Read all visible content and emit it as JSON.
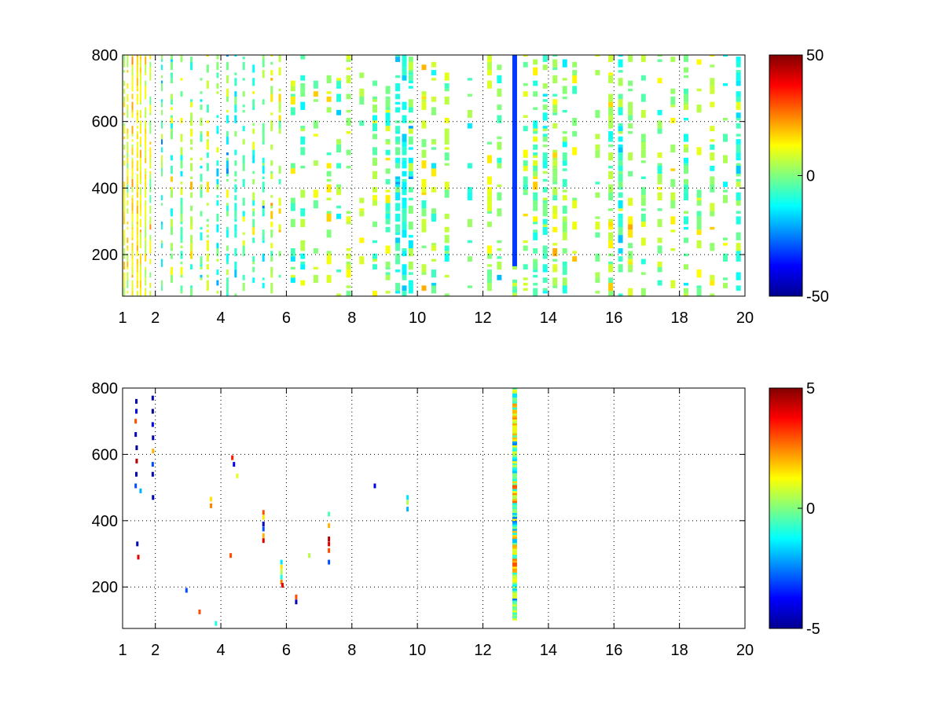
{
  "chart_data": [
    {
      "type": "heatmap",
      "panel": "top",
      "title": "",
      "xlabel": "",
      "ylabel": "",
      "xlim": [
        1,
        20
      ],
      "ylim": [
        75,
        800
      ],
      "xticks": [
        1,
        2,
        4,
        6,
        8,
        10,
        12,
        14,
        16,
        18,
        20
      ],
      "yticks": [
        200,
        400,
        600,
        800
      ],
      "grid": true,
      "colormap": "jet",
      "clim": [
        -50,
        50
      ],
      "colorbar_ticks": [
        50,
        0,
        -50
      ],
      "columns": [
        {
          "x": 1.05,
          "density": 0.45,
          "mean": 8,
          "spread": 8
        },
        {
          "x": 1.15,
          "density": 0.55,
          "mean": 10,
          "spread": 8
        },
        {
          "x": 1.3,
          "density": 0.75,
          "mean": 12,
          "spread": 6
        },
        {
          "x": 1.45,
          "density": 0.8,
          "mean": 14,
          "spread": 5
        },
        {
          "x": 1.55,
          "density": 0.85,
          "mean": 13,
          "spread": 5
        },
        {
          "x": 1.7,
          "density": 0.75,
          "mean": 11,
          "spread": 6
        },
        {
          "x": 1.85,
          "density": 0.55,
          "mean": 8,
          "spread": 8
        },
        {
          "x": 2.2,
          "density": 0.35,
          "mean": -6,
          "spread": 10
        },
        {
          "x": 2.5,
          "density": 0.4,
          "mean": 2,
          "spread": 10
        },
        {
          "x": 2.8,
          "density": 0.35,
          "mean": 0,
          "spread": 10
        },
        {
          "x": 3.1,
          "density": 0.38,
          "mean": 4,
          "spread": 10
        },
        {
          "x": 3.4,
          "density": 0.32,
          "mean": -4,
          "spread": 10
        },
        {
          "x": 3.6,
          "density": 0.35,
          "mean": 5,
          "spread": 10
        },
        {
          "x": 3.9,
          "density": 0.3,
          "mean": -5,
          "spread": 10
        },
        {
          "x": 4.2,
          "density": 0.32,
          "mean": -3,
          "spread": 10
        },
        {
          "x": 4.45,
          "density": 0.38,
          "mean": -8,
          "spread": 9
        },
        {
          "x": 4.7,
          "density": 0.3,
          "mean": 2,
          "spread": 10
        },
        {
          "x": 5.0,
          "density": 0.28,
          "mean": -4,
          "spread": 10
        },
        {
          "x": 5.3,
          "density": 0.3,
          "mean": -7,
          "spread": 10
        },
        {
          "x": 5.55,
          "density": 0.3,
          "mean": 6,
          "spread": 9
        },
        {
          "x": 5.8,
          "density": 0.25,
          "mean": 4,
          "spread": 10
        },
        {
          "x": 6.2,
          "density": 0.22,
          "mean": 2,
          "spread": 10
        },
        {
          "x": 6.5,
          "density": 0.22,
          "mean": -3,
          "spread": 10
        },
        {
          "x": 6.9,
          "density": 0.22,
          "mean": 6,
          "spread": 8
        },
        {
          "x": 7.3,
          "density": 0.25,
          "mean": 8,
          "spread": 8
        },
        {
          "x": 7.6,
          "density": 0.2,
          "mean": -2,
          "spread": 10
        },
        {
          "x": 7.9,
          "density": 0.28,
          "mean": 5,
          "spread": 8
        },
        {
          "x": 8.3,
          "density": 0.2,
          "mean": 4,
          "spread": 8
        },
        {
          "x": 8.7,
          "density": 0.25,
          "mean": 0,
          "spread": 10
        },
        {
          "x": 9.1,
          "density": 0.3,
          "mean": 2,
          "spread": 10
        },
        {
          "x": 9.4,
          "density": 0.45,
          "mean": -10,
          "spread": 8
        },
        {
          "x": 9.6,
          "density": 0.55,
          "mean": -12,
          "spread": 6
        },
        {
          "x": 9.8,
          "density": 0.4,
          "mean": -4,
          "spread": 10
        },
        {
          "x": 10.2,
          "density": 0.25,
          "mean": 6,
          "spread": 8
        },
        {
          "x": 10.5,
          "density": 0.3,
          "mean": 0,
          "spread": 10
        },
        {
          "x": 10.9,
          "density": 0.25,
          "mean": 4,
          "spread": 8
        },
        {
          "x": 11.6,
          "density": 0.18,
          "mean": 0,
          "spread": 10
        },
        {
          "x": 12.2,
          "density": 0.35,
          "mean": 6,
          "spread": 8
        },
        {
          "x": 12.5,
          "density": 0.25,
          "mean": 2,
          "spread": 10
        },
        {
          "x": 13.3,
          "density": 0.35,
          "mean": 4,
          "spread": 8
        },
        {
          "x": 13.6,
          "density": 0.3,
          "mean": 0,
          "spread": 10
        },
        {
          "x": 13.9,
          "density": 0.45,
          "mean": -6,
          "spread": 8
        },
        {
          "x": 14.2,
          "density": 0.4,
          "mean": 6,
          "spread": 8
        },
        {
          "x": 14.5,
          "density": 0.3,
          "mean": -2,
          "spread": 8
        },
        {
          "x": 14.8,
          "density": 0.25,
          "mean": 4,
          "spread": 8
        },
        {
          "x": 15.5,
          "density": 0.2,
          "mean": 0,
          "spread": 8
        },
        {
          "x": 15.9,
          "density": 0.4,
          "mean": 5,
          "spread": 8
        },
        {
          "x": 16.2,
          "density": 0.55,
          "mean": -8,
          "spread": 8
        },
        {
          "x": 16.5,
          "density": 0.3,
          "mean": 4,
          "spread": 8
        },
        {
          "x": 16.9,
          "density": 0.25,
          "mean": 2,
          "spread": 8
        },
        {
          "x": 17.4,
          "density": 0.3,
          "mean": 0,
          "spread": 8
        },
        {
          "x": 17.8,
          "density": 0.25,
          "mean": 5,
          "spread": 8
        },
        {
          "x": 18.2,
          "density": 0.3,
          "mean": -2,
          "spread": 8
        },
        {
          "x": 18.6,
          "density": 0.2,
          "mean": 3,
          "spread": 8
        },
        {
          "x": 19.0,
          "density": 0.3,
          "mean": 4,
          "spread": 8
        },
        {
          "x": 19.4,
          "density": 0.2,
          "mean": -2,
          "spread": 8
        },
        {
          "x": 19.8,
          "density": 0.45,
          "mean": -4,
          "spread": 8
        }
      ],
      "solid_band": {
        "x": 12.97,
        "ymin": 160,
        "ymax": 800,
        "value": -32
      }
    },
    {
      "type": "heatmap",
      "panel": "bottom",
      "title": "",
      "xlabel": "",
      "ylabel": "",
      "xlim": [
        1,
        20
      ],
      "ylim": [
        75,
        800
      ],
      "xticks": [
        1,
        2,
        4,
        6,
        8,
        10,
        12,
        14,
        16,
        18,
        20
      ],
      "yticks": [
        200,
        400,
        600,
        800
      ],
      "grid": true,
      "colormap": "jet",
      "clim": [
        -5,
        5
      ],
      "colorbar_ticks": [
        5,
        0,
        -5
      ],
      "band": {
        "x": 12.97,
        "ymin": 100,
        "ymax": 800
      },
      "points": [
        {
          "x": 1.42,
          "y": 760,
          "v": -4.5
        },
        {
          "x": 1.42,
          "y": 730,
          "v": -4.0
        },
        {
          "x": 1.4,
          "y": 700,
          "v": 3.0
        },
        {
          "x": 1.4,
          "y": 660,
          "v": -4.5
        },
        {
          "x": 1.43,
          "y": 620,
          "v": -4.8
        },
        {
          "x": 1.43,
          "y": 580,
          "v": 4.5
        },
        {
          "x": 1.42,
          "y": 540,
          "v": -4.5
        },
        {
          "x": 1.4,
          "y": 505,
          "v": -3.0
        },
        {
          "x": 1.45,
          "y": 330,
          "v": -4.5
        },
        {
          "x": 1.48,
          "y": 290,
          "v": 4.0
        },
        {
          "x": 1.55,
          "y": 490,
          "v": -2.0
        },
        {
          "x": 1.92,
          "y": 770,
          "v": -4.5
        },
        {
          "x": 1.92,
          "y": 730,
          "v": -4.8
        },
        {
          "x": 1.92,
          "y": 690,
          "v": -4.0
        },
        {
          "x": 1.93,
          "y": 650,
          "v": -4.5
        },
        {
          "x": 1.93,
          "y": 610,
          "v": 2.0
        },
        {
          "x": 1.92,
          "y": 570,
          "v": -3.0
        },
        {
          "x": 1.92,
          "y": 540,
          "v": -4.5
        },
        {
          "x": 1.93,
          "y": 470,
          "v": -4.5
        },
        {
          "x": 2.95,
          "y": 190,
          "v": -3.0
        },
        {
          "x": 3.35,
          "y": 125,
          "v": 3.0
        },
        {
          "x": 3.7,
          "y": 465,
          "v": 1.5
        },
        {
          "x": 3.7,
          "y": 445,
          "v": 2.5
        },
        {
          "x": 3.85,
          "y": 90,
          "v": -1.0
        },
        {
          "x": 4.35,
          "y": 590,
          "v": 3.5
        },
        {
          "x": 4.4,
          "y": 570,
          "v": -4.0
        },
        {
          "x": 4.5,
          "y": 535,
          "v": 1.0
        },
        {
          "x": 4.3,
          "y": 295,
          "v": 3.0
        },
        {
          "x": 5.3,
          "y": 425,
          "v": 3.0
        },
        {
          "x": 5.3,
          "y": 410,
          "v": 1.5
        },
        {
          "x": 5.3,
          "y": 390,
          "v": -4.5
        },
        {
          "x": 5.3,
          "y": 375,
          "v": -3.0
        },
        {
          "x": 5.3,
          "y": 355,
          "v": 2.0
        },
        {
          "x": 5.3,
          "y": 340,
          "v": 4.0
        },
        {
          "x": 5.85,
          "y": 275,
          "v": -1.5
        },
        {
          "x": 5.85,
          "y": 260,
          "v": 1.5
        },
        {
          "x": 5.85,
          "y": 245,
          "v": 0.5
        },
        {
          "x": 5.85,
          "y": 230,
          "v": -1.0
        },
        {
          "x": 5.85,
          "y": 215,
          "v": 2.5
        },
        {
          "x": 5.88,
          "y": 205,
          "v": 4.0
        },
        {
          "x": 6.3,
          "y": 170,
          "v": 3.0
        },
        {
          "x": 6.3,
          "y": 155,
          "v": -4.5
        },
        {
          "x": 6.7,
          "y": 295,
          "v": 0.5
        },
        {
          "x": 7.3,
          "y": 420,
          "v": -0.5
        },
        {
          "x": 7.3,
          "y": 345,
          "v": 4.5
        },
        {
          "x": 7.3,
          "y": 330,
          "v": 4.0
        },
        {
          "x": 7.3,
          "y": 310,
          "v": 3.0
        },
        {
          "x": 7.3,
          "y": 275,
          "v": -3.0
        },
        {
          "x": 7.3,
          "y": 385,
          "v": 2.0
        },
        {
          "x": 8.7,
          "y": 505,
          "v": -4.0
        },
        {
          "x": 9.7,
          "y": 470,
          "v": -1.5
        },
        {
          "x": 9.7,
          "y": 455,
          "v": 0.5
        },
        {
          "x": 9.7,
          "y": 435,
          "v": -2.0
        }
      ]
    }
  ]
}
